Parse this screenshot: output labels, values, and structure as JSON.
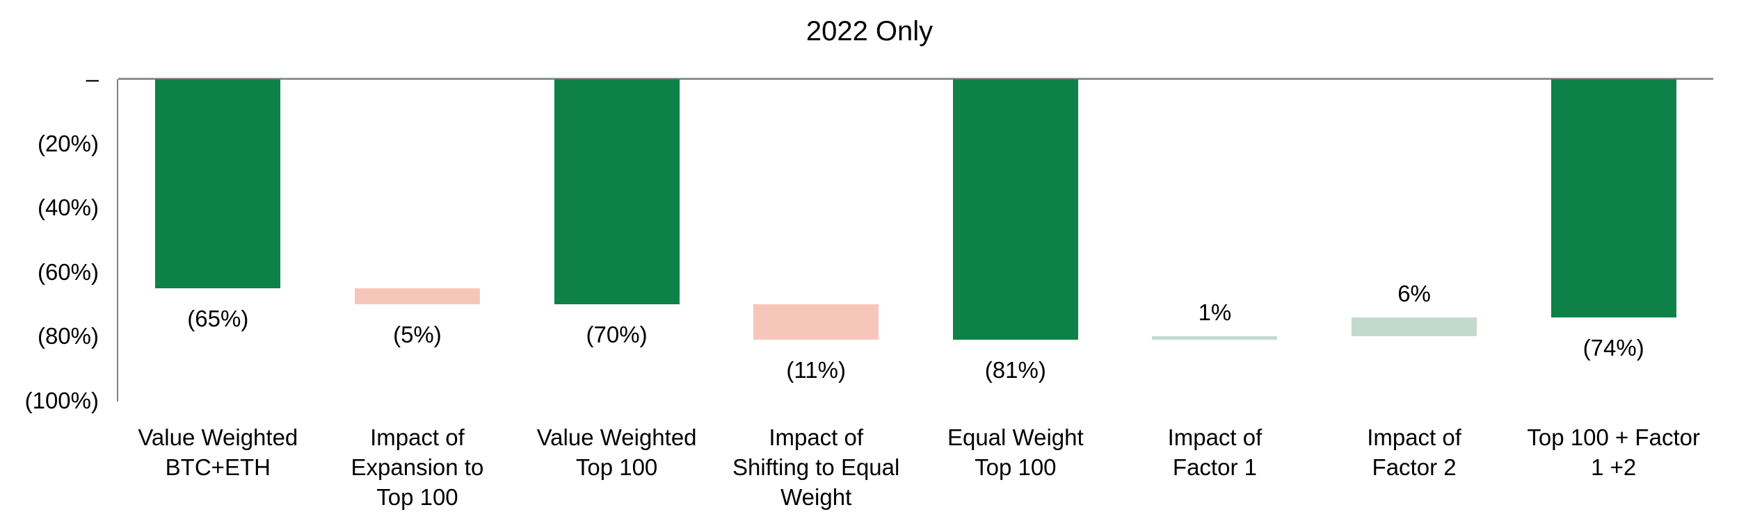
{
  "chart_data": {
    "type": "bar",
    "subtype": "waterfall",
    "title": "2022 Only",
    "grid": "off",
    "legend": null,
    "y_axis": {
      "tick_labels": [
        "–",
        "(20%)",
        "(40%)",
        "(60%)",
        "(80%)",
        "(100%)"
      ],
      "tick_values": [
        0,
        -20,
        -40,
        -60,
        -80,
        -100
      ],
      "min": -100,
      "max": 0,
      "format": "negative-in-parentheses"
    },
    "bars": [
      {
        "category": "Value Weighted BTC+ETH",
        "lines": [
          "Value Weighted",
          "BTC+ETH"
        ],
        "value": -65,
        "start": 0,
        "end": -65,
        "kind": "total",
        "data_label": "(65%)",
        "label_position": "below"
      },
      {
        "category": "Impact of Expansion to Top 100",
        "lines": [
          "Impact of",
          "Expansion to",
          "Top 100"
        ],
        "value": -5,
        "start": -65,
        "end": -70,
        "kind": "decrease",
        "data_label": "(5%)",
        "label_position": "below"
      },
      {
        "category": "Value Weighted Top 100",
        "lines": [
          "Value Weighted",
          "Top 100"
        ],
        "value": -70,
        "start": 0,
        "end": -70,
        "kind": "total",
        "data_label": "(70%)",
        "label_position": "below"
      },
      {
        "category": "Impact of Shifting to Equal Weight",
        "lines": [
          "Impact of",
          "Shifting to Equal",
          "Weight"
        ],
        "value": -11,
        "start": -70,
        "end": -81,
        "kind": "decrease",
        "data_label": "(11%)",
        "label_position": "below"
      },
      {
        "category": "Equal Weight Top 100",
        "lines": [
          "Equal Weight",
          "Top 100"
        ],
        "value": -81,
        "start": 0,
        "end": -81,
        "kind": "total",
        "data_label": "(81%)",
        "label_position": "below"
      },
      {
        "category": "Impact of Factor 1",
        "lines": [
          "Impact of",
          "Factor 1"
        ],
        "value": 1,
        "start": -81,
        "end": -80,
        "kind": "increase",
        "data_label": "1%",
        "label_position": "above"
      },
      {
        "category": "Impact of Factor 2",
        "lines": [
          "Impact of",
          "Factor 2"
        ],
        "value": 6,
        "start": -80,
        "end": -74,
        "kind": "increase",
        "data_label": "6%",
        "label_position": "above"
      },
      {
        "category": "Top 100 + Factor 1 +2",
        "lines": [
          "Top 100 + Factor",
          "1 +2"
        ],
        "value": -74,
        "start": 0,
        "end": -74,
        "kind": "total",
        "data_label": "(74%)",
        "label_position": "below"
      }
    ],
    "colors": {
      "total": "#0E8148",
      "decrease": "#F7C6BA",
      "increase": "#C2DACC",
      "zero_line": "#8F8F8F",
      "axis_line": "#7F7F7F",
      "text": "#000000"
    }
  }
}
